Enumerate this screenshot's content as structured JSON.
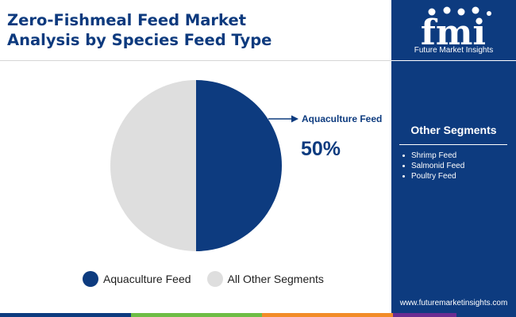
{
  "header": {
    "title_line1": "Zero-Fishmeal Feed Market",
    "title_line2": "Analysis by Species Feed Type"
  },
  "chart_data": {
    "type": "pie",
    "slices": [
      {
        "label": "Aquaculture Feed",
        "value": 50,
        "color": "#0d3b7f"
      },
      {
        "label": "All Other Segments",
        "value": 50,
        "color": "#dedede"
      }
    ],
    "callout": {
      "label": "Aquaculture Feed",
      "value_text": "50%"
    },
    "legend": [
      {
        "label": "Aquaculture Feed",
        "color": "#0d3b7f"
      },
      {
        "label": "All Other Segments",
        "color": "#dedede"
      }
    ]
  },
  "sidebar": {
    "logo_text": "fmi",
    "logo_caption": "Future Market Insights",
    "segments_title": "Other Segments",
    "segments": [
      "Shrimp Feed",
      "Salmonid Feed",
      "Poultry Feed"
    ],
    "website": "www.futuremarketinsights.com"
  },
  "colors": {
    "brand_navy": "#0d3b7f",
    "bottom_bar": [
      "#0d3b7f",
      "#6ebd45",
      "#f28c28",
      "#6a2c91",
      "#0d3b7f"
    ]
  }
}
